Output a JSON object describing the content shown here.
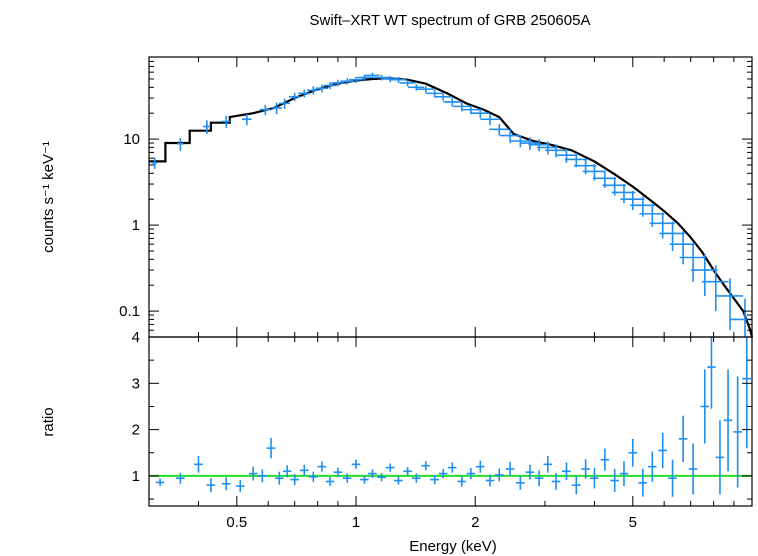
{
  "chart_data": {
    "type": "scatter",
    "title": "Swift–XRT WT spectrum of GRB 250605A",
    "xlabel": "Energy (keV)",
    "x_scale": "log",
    "xlim": [
      0.3,
      10
    ],
    "x_ticks": [
      {
        "value": 0.5,
        "label": "0.5"
      },
      {
        "value": 1,
        "label": "1"
      },
      {
        "value": 2,
        "label": "2"
      },
      {
        "value": 5,
        "label": "5"
      }
    ],
    "panels": [
      {
        "name": "spectrum",
        "ylabel": "counts s⁻¹ keV⁻¹",
        "y_scale": "log",
        "ylim": [
          0.05,
          90
        ],
        "y_ticks": [
          {
            "value": 0.1,
            "label": "0.1"
          },
          {
            "value": 1,
            "label": "1"
          },
          {
            "value": 10,
            "label": "10"
          }
        ],
        "data_color": "#1f8ef0",
        "model_color": "#000000",
        "data": [
          [
            0.31,
            0.34,
            5.3,
            0.8
          ],
          [
            0.36,
            0.38,
            8.8,
            1.5
          ],
          [
            0.42,
            0.45,
            14,
            2.5
          ],
          [
            0.47,
            0.5,
            16,
            2.5
          ],
          [
            0.53,
            0.56,
            17,
            2.5
          ],
          [
            0.59,
            0.61,
            22,
            3
          ],
          [
            0.63,
            0.62,
            23,
            3.5
          ],
          [
            0.66,
            0.64,
            26,
            3.5
          ],
          [
            0.7,
            0.66,
            31,
            3.5
          ],
          [
            0.74,
            0.68,
            34,
            3.5
          ],
          [
            0.78,
            0.7,
            37,
            4
          ],
          [
            0.82,
            0.72,
            39,
            4
          ],
          [
            0.86,
            0.74,
            42,
            4
          ],
          [
            0.9,
            0.76,
            45,
            4
          ],
          [
            0.95,
            0.78,
            47,
            4
          ],
          [
            1.0,
            0.8,
            49,
            4
          ],
          [
            1.05,
            0.82,
            52,
            4
          ],
          [
            1.1,
            0.84,
            55,
            4
          ],
          [
            1.16,
            0.86,
            52,
            4
          ],
          [
            1.22,
            0.88,
            50,
            4
          ],
          [
            1.28,
            0.9,
            49,
            4
          ],
          [
            1.35,
            0.92,
            45,
            4
          ],
          [
            1.42,
            0.94,
            40,
            3.5
          ],
          [
            1.5,
            0.96,
            38,
            3.5
          ],
          [
            1.58,
            0.98,
            34,
            3.5
          ],
          [
            1.66,
            1.0,
            31,
            3
          ],
          [
            1.75,
            1.02,
            27,
            3
          ],
          [
            1.85,
            1.04,
            24,
            3
          ],
          [
            1.95,
            1.06,
            22,
            2.5
          ],
          [
            2.06,
            1.08,
            20,
            2.5
          ],
          [
            2.18,
            1.1,
            17,
            2.5
          ],
          [
            2.3,
            1.12,
            13,
            2
          ],
          [
            2.45,
            1.14,
            11,
            2
          ],
          [
            2.6,
            1.16,
            9.5,
            1.5
          ],
          [
            2.75,
            1.18,
            9.0,
            1.5
          ],
          [
            2.9,
            1.2,
            8.6,
            1.4
          ],
          [
            3.05,
            1.22,
            8.0,
            1.4
          ],
          [
            3.2,
            1.24,
            7.4,
            1.3
          ],
          [
            3.4,
            1.26,
            6.5,
            1.2
          ],
          [
            3.6,
            1.28,
            5.8,
            1.1
          ],
          [
            3.8,
            1.3,
            4.9,
            1.0
          ],
          [
            4.0,
            1.32,
            4.2,
            0.9
          ],
          [
            4.25,
            1.34,
            3.5,
            0.8
          ],
          [
            4.5,
            1.36,
            2.9,
            0.7
          ],
          [
            4.75,
            1.38,
            2.4,
            0.6
          ],
          [
            5.0,
            1.4,
            2.0,
            0.5
          ],
          [
            5.3,
            1.42,
            1.7,
            0.45
          ],
          [
            5.6,
            1.44,
            1.35,
            0.4
          ],
          [
            5.95,
            1.46,
            1.05,
            0.35
          ],
          [
            6.3,
            1.48,
            0.8,
            0.3
          ],
          [
            6.7,
            1.5,
            0.6,
            0.25
          ],
          [
            7.1,
            1.52,
            0.42,
            0.2
          ],
          [
            7.6,
            1.54,
            0.3,
            0.15
          ],
          [
            8.1,
            1.56,
            0.22,
            0.12
          ],
          [
            8.8,
            1.58,
            0.15,
            0.09
          ],
          [
            9.6,
            1.6,
            0.08,
            0.06
          ]
        ],
        "model": [
          [
            0.3,
            5.5
          ],
          [
            0.33,
            5.5
          ],
          [
            0.33,
            9.0
          ],
          [
            0.38,
            9.0
          ],
          [
            0.38,
            12.5
          ],
          [
            0.43,
            12.5
          ],
          [
            0.43,
            15.5
          ],
          [
            0.48,
            15.5
          ],
          [
            0.48,
            18
          ],
          [
            0.55,
            20
          ],
          [
            0.62,
            23
          ],
          [
            0.7,
            30
          ],
          [
            0.8,
            38
          ],
          [
            0.9,
            44
          ],
          [
            1.0,
            48
          ],
          [
            1.1,
            50
          ],
          [
            1.2,
            51
          ],
          [
            1.35,
            49
          ],
          [
            1.5,
            44
          ],
          [
            1.7,
            34
          ],
          [
            1.9,
            26
          ],
          [
            2.1,
            22
          ],
          [
            2.3,
            18
          ],
          [
            2.5,
            11.5
          ],
          [
            2.8,
            9.5
          ],
          [
            3.1,
            8.6
          ],
          [
            3.5,
            7.4
          ],
          [
            4.0,
            5.5
          ],
          [
            4.5,
            3.9
          ],
          [
            5.0,
            2.8
          ],
          [
            5.5,
            2.0
          ],
          [
            6.0,
            1.45
          ],
          [
            6.5,
            1.05
          ],
          [
            7.0,
            0.72
          ],
          [
            7.5,
            0.48
          ],
          [
            8.0,
            0.3
          ],
          [
            8.5,
            0.2
          ],
          [
            9.0,
            0.14
          ],
          [
            9.5,
            0.1
          ],
          [
            9.9,
            0.06
          ],
          [
            10.0,
            0.05
          ]
        ]
      },
      {
        "name": "ratio",
        "ylabel": "ratio",
        "y_scale": "linear",
        "ylim": [
          0.35,
          4
        ],
        "y_ticks": [
          {
            "value": 1,
            "label": "1"
          },
          {
            "value": 2,
            "label": "2"
          },
          {
            "value": 3,
            "label": "3"
          },
          {
            "value": 4,
            "label": "4"
          }
        ],
        "data_color": "#1f8ef0",
        "reference_value": 1,
        "reference_color": "#22e02a",
        "data": [
          [
            0.32,
            0.86,
            0.08
          ],
          [
            0.36,
            0.95,
            0.12
          ],
          [
            0.4,
            1.25,
            0.18
          ],
          [
            0.43,
            0.8,
            0.15
          ],
          [
            0.47,
            0.83,
            0.14
          ],
          [
            0.51,
            0.78,
            0.13
          ],
          [
            0.55,
            1.05,
            0.15
          ],
          [
            0.58,
            1.0,
            0.14
          ],
          [
            0.61,
            1.6,
            0.22
          ],
          [
            0.64,
            0.95,
            0.14
          ],
          [
            0.67,
            1.1,
            0.13
          ],
          [
            0.7,
            0.92,
            0.12
          ],
          [
            0.74,
            1.12,
            0.12
          ],
          [
            0.78,
            0.98,
            0.11
          ],
          [
            0.82,
            1.2,
            0.11
          ],
          [
            0.86,
            0.88,
            0.1
          ],
          [
            0.9,
            1.08,
            0.1
          ],
          [
            0.95,
            0.95,
            0.1
          ],
          [
            1.0,
            1.25,
            0.1
          ],
          [
            1.05,
            0.92,
            0.09
          ],
          [
            1.1,
            1.05,
            0.09
          ],
          [
            1.16,
            0.97,
            0.09
          ],
          [
            1.22,
            1.18,
            0.09
          ],
          [
            1.28,
            0.9,
            0.09
          ],
          [
            1.35,
            1.1,
            0.09
          ],
          [
            1.42,
            0.95,
            0.1
          ],
          [
            1.5,
            1.22,
            0.1
          ],
          [
            1.58,
            0.92,
            0.1
          ],
          [
            1.66,
            1.05,
            0.1
          ],
          [
            1.75,
            1.18,
            0.11
          ],
          [
            1.85,
            0.88,
            0.11
          ],
          [
            1.95,
            1.05,
            0.12
          ],
          [
            2.06,
            1.2,
            0.13
          ],
          [
            2.18,
            0.9,
            0.13
          ],
          [
            2.3,
            1.02,
            0.14
          ],
          [
            2.45,
            1.15,
            0.15
          ],
          [
            2.6,
            0.85,
            0.15
          ],
          [
            2.75,
            1.08,
            0.16
          ],
          [
            2.9,
            0.95,
            0.17
          ],
          [
            3.05,
            1.25,
            0.18
          ],
          [
            3.2,
            0.88,
            0.18
          ],
          [
            3.4,
            1.1,
            0.19
          ],
          [
            3.6,
            0.8,
            0.2
          ],
          [
            3.8,
            1.15,
            0.21
          ],
          [
            4.0,
            0.95,
            0.22
          ],
          [
            4.25,
            1.35,
            0.24
          ],
          [
            4.5,
            0.9,
            0.25
          ],
          [
            4.75,
            1.05,
            0.27
          ],
          [
            5.0,
            1.5,
            0.3
          ],
          [
            5.3,
            0.85,
            0.3
          ],
          [
            5.6,
            1.2,
            0.33
          ],
          [
            5.95,
            1.55,
            0.38
          ],
          [
            6.3,
            0.95,
            0.4
          ],
          [
            6.7,
            1.8,
            0.5
          ],
          [
            7.1,
            1.15,
            0.55
          ],
          [
            7.6,
            2.5,
            0.8
          ],
          [
            7.9,
            3.35,
            0.9
          ],
          [
            8.3,
            1.4,
            0.8
          ],
          [
            8.7,
            2.2,
            1.1
          ],
          [
            9.2,
            1.95,
            1.2
          ],
          [
            9.7,
            3.1,
            1.5
          ]
        ]
      }
    ],
    "grid": false,
    "legend": "none"
  }
}
